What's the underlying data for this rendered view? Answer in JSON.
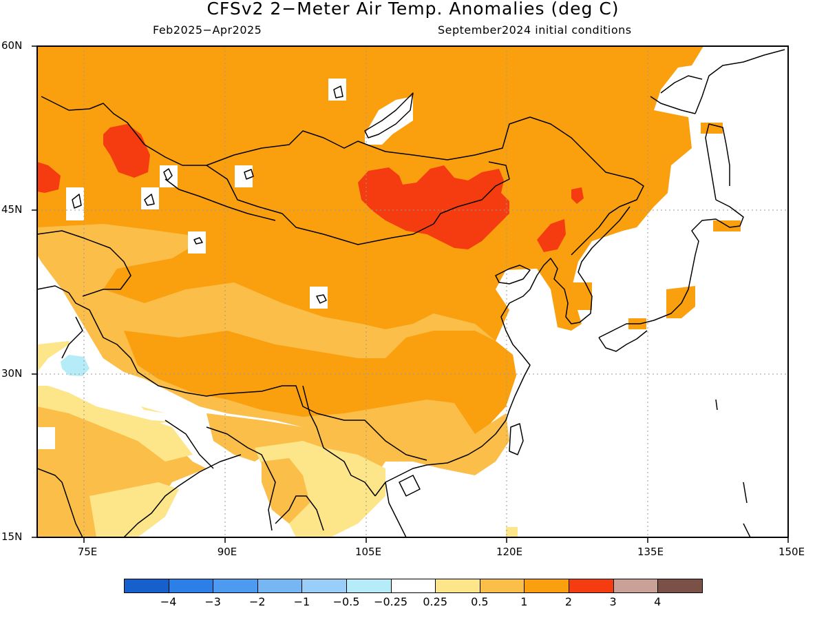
{
  "title": "CFSv2 2−Meter Air Temp. Anomalies (deg C)",
  "subtitle_left": "Feb2025−Apr2025",
  "subtitle_right": "September2024 initial conditions",
  "lat_labels": [
    "60N",
    "45N",
    "30N",
    "15N"
  ],
  "lon_labels": [
    "75E",
    "90E",
    "105E",
    "120E",
    "135E",
    "150E"
  ],
  "colorbar": {
    "colors": [
      "#1560cc",
      "#2c7fe6",
      "#4d9bf0",
      "#75b6f3",
      "#98cef7",
      "#b5ecf7",
      "#ffffff",
      "#fde58a",
      "#fbbe48",
      "#fa9f0e",
      "#f53c10",
      "#c9a197",
      "#7a5047"
    ],
    "labels": [
      "−4",
      "−3",
      "−2",
      "−1",
      "−0.5",
      "−0.25",
      "0.25",
      "0.5",
      "1",
      "2",
      "3",
      "4"
    ]
  }
}
